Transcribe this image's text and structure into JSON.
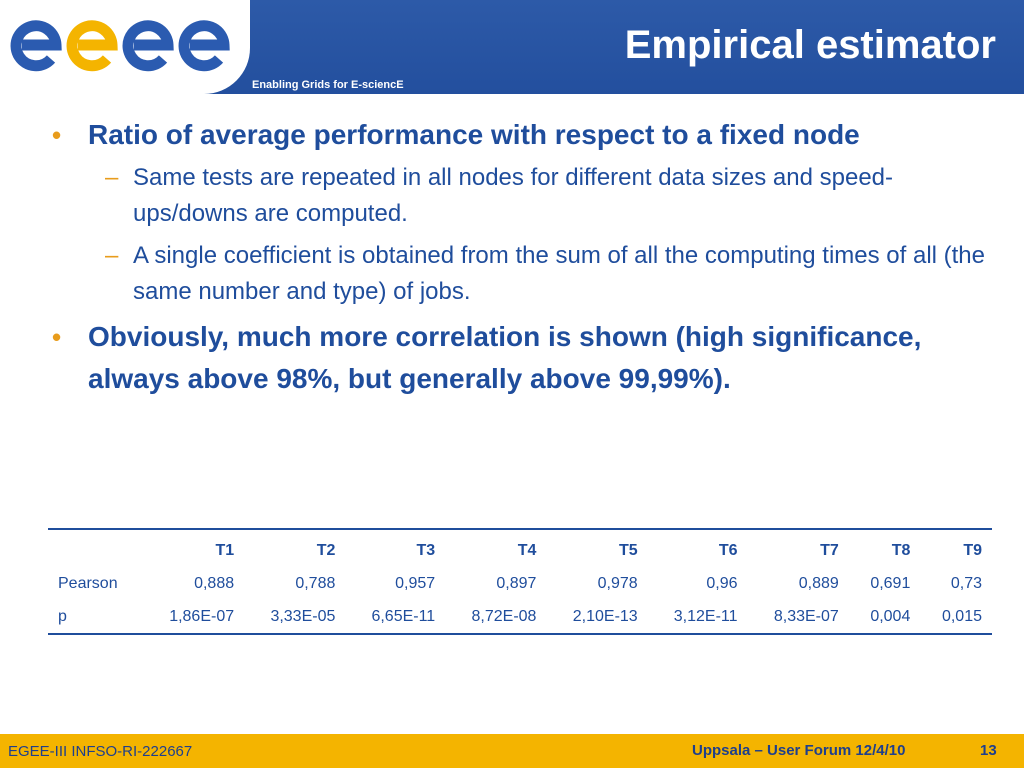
{
  "header": {
    "logo_text": "egee",
    "tagline": "Enabling Grids for E-sciencE",
    "title": "Empirical estimator"
  },
  "bullets": [
    {
      "text": "Ratio of average performance with respect to a fixed node",
      "sub": [
        "Same tests are repeated in all nodes for different data sizes and speed-ups/downs are computed.",
        "A single coefficient is obtained from the sum of all the computing times of all (the same number and type) of jobs."
      ]
    },
    {
      "text": "Obviously, much more correlation is shown (high significance, always above 98%, but generally above 99,99%).",
      "sub": []
    }
  ],
  "table": {
    "headers": [
      "",
      "T1",
      "T2",
      "T3",
      "T4",
      "T5",
      "T6",
      "T7",
      "T8",
      "T9"
    ],
    "rows": [
      [
        "Pearson",
        "0,888",
        "0,788",
        "0,957",
        "0,897",
        "0,978",
        "0,96",
        "0,889",
        "0,691",
        "0,73"
      ],
      [
        "p",
        "1,86E-07",
        "3,33E-05",
        "6,65E-11",
        "8,72E-08",
        "2,10E-13",
        "3,12E-11",
        "8,33E-07",
        "0,004",
        "0,015"
      ]
    ]
  },
  "footer": {
    "left": "EGEE-III INFSO-RI-222667",
    "center": "Uppsala – User Forum 12/4/10",
    "page": "13"
  },
  "colors": {
    "header_blue": "#2d5aa8",
    "text_blue": "#1f4d9c",
    "accent_orange": "#e89c1c",
    "footer_yellow": "#f4b400"
  },
  "icons": {
    "bullet": "•",
    "dash": "–"
  }
}
